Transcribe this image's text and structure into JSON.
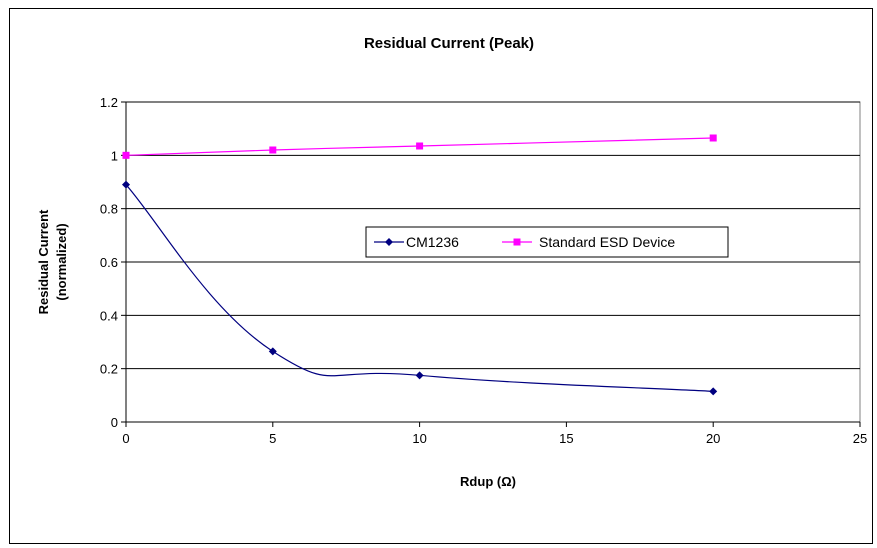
{
  "chart_data": {
    "type": "line",
    "title": "Residual Current (Peak)",
    "xlabel": "Rdup (Ω)",
    "ylabel_lines": [
      "Residual Current",
      "(normalized)"
    ],
    "xlim": [
      0,
      25
    ],
    "ylim": [
      0,
      1.2
    ],
    "xticks": [
      0,
      5,
      10,
      15,
      20,
      25
    ],
    "yticks": [
      0,
      0.2,
      0.4,
      0.6,
      0.8,
      1,
      1.2
    ],
    "xtick_labels": [
      "0",
      "5",
      "10",
      "15",
      "20",
      "25"
    ],
    "ytick_labels": [
      "0",
      "0.2",
      "0.4",
      "0.6",
      "0.8",
      "1",
      "1.2"
    ],
    "grid": "horizontal",
    "legend_position": "center-right",
    "smooth": true,
    "series": [
      {
        "name": "CM1236",
        "color": "#000080",
        "marker": "diamond",
        "x": [
          0,
          5,
          10,
          20
        ],
        "y": [
          0.89,
          0.265,
          0.175,
          0.115
        ]
      },
      {
        "name": "Standard ESD Device",
        "color": "#ff00ff",
        "marker": "square",
        "x": [
          0,
          5,
          10,
          20
        ],
        "y": [
          1.0,
          1.02,
          1.035,
          1.065
        ]
      }
    ]
  }
}
